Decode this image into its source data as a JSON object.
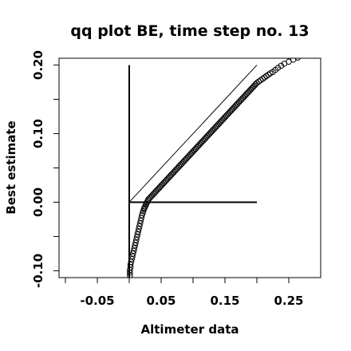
{
  "chart_data": {
    "type": "scatter",
    "title": "qq plot BE, time step no. 13",
    "xlabel": "Altimeter data",
    "ylabel": "Best estimate",
    "xlim": [
      -0.11,
      0.3
    ],
    "ylim": [
      -0.11,
      0.21
    ],
    "xticks": [
      -0.1,
      -0.05,
      0.0,
      0.05,
      0.1,
      0.15,
      0.2,
      0.25
    ],
    "xtick_labels": [
      "",
      "-0.05",
      "",
      "0.05",
      "",
      "0.15",
      "",
      "0.25"
    ],
    "yticks": [
      -0.1,
      -0.05,
      0.0,
      0.05,
      0.1,
      0.15,
      0.2
    ],
    "ytick_labels": [
      "-0.10",
      "",
      "0.00",
      "",
      "0.10",
      "",
      "0.20"
    ],
    "grid": false,
    "reference_line": {
      "x": [
        0.0,
        0.2
      ],
      "y": [
        0.0,
        0.2
      ]
    },
    "cross_lines": {
      "vertical": {
        "x": 0.0,
        "y": [
          -0.11,
          0.2
        ]
      },
      "horizontal": {
        "y": 0.0,
        "x": [
          0.0,
          0.2
        ]
      }
    },
    "series": [
      {
        "x": [
          0.001,
          0.001,
          0.001,
          0.002,
          0.002,
          0.003,
          0.004,
          0.005,
          0.006,
          0.007,
          0.008,
          0.009,
          0.01,
          0.011,
          0.012,
          0.013,
          0.014,
          0.015,
          0.016,
          0.017,
          0.018,
          0.019,
          0.02,
          0.021,
          0.022,
          0.023,
          0.024,
          0.025,
          0.026,
          0.027,
          0.028,
          0.029,
          0.03,
          0.032,
          0.034,
          0.036,
          0.038,
          0.04,
          0.042,
          0.044,
          0.046,
          0.048,
          0.05,
          0.052,
          0.054,
          0.056,
          0.058,
          0.06,
          0.062,
          0.064,
          0.066,
          0.068,
          0.07,
          0.072,
          0.074,
          0.076,
          0.078,
          0.08,
          0.082,
          0.084,
          0.086,
          0.088,
          0.09,
          0.092,
          0.094,
          0.096,
          0.098,
          0.1,
          0.102,
          0.104,
          0.106,
          0.108,
          0.11,
          0.112,
          0.114,
          0.116,
          0.118,
          0.12,
          0.122,
          0.124,
          0.126,
          0.128,
          0.13,
          0.132,
          0.134,
          0.136,
          0.138,
          0.14,
          0.142,
          0.144,
          0.146,
          0.148,
          0.15,
          0.152,
          0.154,
          0.156,
          0.158,
          0.16,
          0.162,
          0.164,
          0.166,
          0.168,
          0.17,
          0.172,
          0.174,
          0.176,
          0.178,
          0.18,
          0.182,
          0.184,
          0.186,
          0.188,
          0.19,
          0.192,
          0.194,
          0.196,
          0.198,
          0.2,
          0.203,
          0.206,
          0.209,
          0.212,
          0.215,
          0.218,
          0.221,
          0.225,
          0.229,
          0.233,
          0.238,
          0.243,
          0.25,
          0.257,
          0.264,
          0.272
        ],
        "y": [
          -0.107,
          -0.103,
          -0.099,
          -0.095,
          -0.091,
          -0.087,
          -0.083,
          -0.079,
          -0.075,
          -0.071,
          -0.067,
          -0.063,
          -0.059,
          -0.055,
          -0.051,
          -0.047,
          -0.043,
          -0.039,
          -0.035,
          -0.031,
          -0.027,
          -0.023,
          -0.019,
          -0.016,
          -0.013,
          -0.01,
          -0.008,
          -0.006,
          -0.004,
          -0.002,
          0.0,
          0.002,
          0.004,
          0.006,
          0.008,
          0.01,
          0.012,
          0.014,
          0.016,
          0.018,
          0.02,
          0.022,
          0.024,
          0.026,
          0.028,
          0.03,
          0.032,
          0.034,
          0.036,
          0.038,
          0.04,
          0.042,
          0.044,
          0.046,
          0.048,
          0.05,
          0.052,
          0.054,
          0.056,
          0.058,
          0.06,
          0.062,
          0.064,
          0.066,
          0.068,
          0.07,
          0.072,
          0.074,
          0.076,
          0.078,
          0.08,
          0.082,
          0.084,
          0.086,
          0.088,
          0.09,
          0.092,
          0.094,
          0.096,
          0.098,
          0.1,
          0.102,
          0.104,
          0.106,
          0.108,
          0.11,
          0.112,
          0.114,
          0.116,
          0.118,
          0.12,
          0.122,
          0.124,
          0.126,
          0.128,
          0.13,
          0.132,
          0.134,
          0.136,
          0.138,
          0.14,
          0.142,
          0.144,
          0.146,
          0.148,
          0.15,
          0.152,
          0.154,
          0.156,
          0.158,
          0.16,
          0.162,
          0.164,
          0.166,
          0.168,
          0.17,
          0.172,
          0.174,
          0.176,
          0.178,
          0.18,
          0.182,
          0.184,
          0.186,
          0.188,
          0.19,
          0.193,
          0.196,
          0.199,
          0.202,
          0.205,
          0.208,
          0.211,
          0.214
        ]
      }
    ]
  }
}
